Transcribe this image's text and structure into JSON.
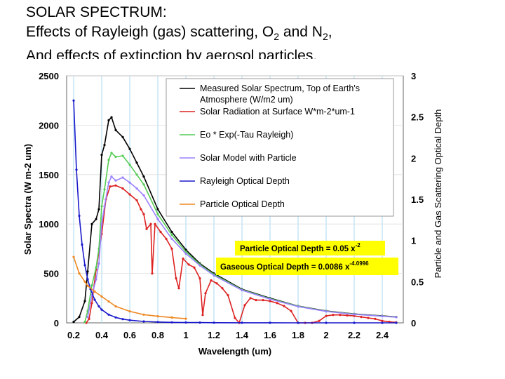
{
  "title": {
    "line1": "SOLAR SPECTRUM:",
    "line2_a": "Effects of Rayleigh (gas) scattering, O",
    "line2_sub1": "2",
    "line2_b": " and N",
    "line2_sub2": "2",
    "line2_c": ",",
    "line3": "And effects of extinction by aerosol particles."
  },
  "chart_data": {
    "type": "line",
    "xlabel": "Wavelength (um)",
    "ylabel_left": "Solar Spectra (W m-2 um)",
    "ylabel_right": "Particle and Gas Scattering Optical Depth",
    "xlim": [
      0.15,
      2.55
    ],
    "ylim_left": [
      0,
      2500
    ],
    "ylim_right": [
      0,
      3
    ],
    "xticks": [
      "0.2",
      "0.4",
      "0.6",
      "0.8",
      "1",
      "1.2",
      "1.4",
      "1.6",
      "1.8",
      "2",
      "2.2",
      "2.4"
    ],
    "xtick_values": [
      0.2,
      0.4,
      0.6,
      0.8,
      1.0,
      1.2,
      1.4,
      1.6,
      1.8,
      2.0,
      2.2,
      2.4
    ],
    "yticks_left": [
      "0",
      "500",
      "1000",
      "1500",
      "2000",
      "2500"
    ],
    "ytick_values_left": [
      0,
      500,
      1000,
      1500,
      2000,
      2500
    ],
    "yticks_right": [
      "0",
      "0.5",
      "1",
      "1.5",
      "2",
      "2.5",
      "3"
    ],
    "ytick_values_right": [
      0,
      0.5,
      1,
      1.5,
      2,
      2.5,
      3
    ],
    "series": [
      {
        "name": "Measured Solar Spectrum, Top of Earth's Atmosphere (W/m2 um)",
        "color": "#000000",
        "axis": "left",
        "x": [
          0.2,
          0.24,
          0.28,
          0.3,
          0.33,
          0.36,
          0.38,
          0.4,
          0.42,
          0.45,
          0.47,
          0.5,
          0.55,
          0.6,
          0.65,
          0.7,
          0.8,
          0.9,
          1.0,
          1.1,
          1.2,
          1.4,
          1.6,
          1.8,
          2.0,
          2.2,
          2.4,
          2.5
        ],
        "y": [
          10,
          60,
          220,
          520,
          1000,
          1050,
          1150,
          1700,
          1800,
          2050,
          2080,
          1950,
          1880,
          1760,
          1620,
          1480,
          1150,
          920,
          740,
          600,
          500,
          340,
          250,
          170,
          120,
          90,
          70,
          60
        ]
      },
      {
        "name": "Solar Radiation at Surface W*m-2*um-1",
        "color": "#dd2222",
        "axis": "left",
        "x": [
          0.29,
          0.31,
          0.33,
          0.36,
          0.4,
          0.43,
          0.46,
          0.5,
          0.55,
          0.6,
          0.65,
          0.68,
          0.7,
          0.72,
          0.75,
          0.76,
          0.78,
          0.82,
          0.86,
          0.9,
          0.93,
          0.95,
          0.98,
          1.02,
          1.06,
          1.1,
          1.12,
          1.14,
          1.18,
          1.22,
          1.26,
          1.3,
          1.35,
          1.38,
          1.42,
          1.46,
          1.5,
          1.55,
          1.6,
          1.65,
          1.7,
          1.75,
          1.8,
          1.85,
          1.9,
          1.95,
          2.0,
          2.05,
          2.1,
          2.15,
          2.2,
          2.25,
          2.3,
          2.35,
          2.4,
          2.45,
          2.5
        ],
        "y": [
          0,
          40,
          200,
          540,
          900,
          1250,
          1380,
          1390,
          1360,
          1300,
          1240,
          1150,
          1100,
          950,
          1000,
          500,
          1000,
          920,
          850,
          750,
          450,
          350,
          650,
          590,
          560,
          450,
          80,
          300,
          430,
          400,
          350,
          280,
          50,
          0,
          180,
          250,
          230,
          230,
          220,
          200,
          170,
          120,
          0,
          0,
          0,
          20,
          70,
          80,
          80,
          75,
          70,
          60,
          50,
          40,
          20,
          10,
          5
        ]
      },
      {
        "name": "Eo * Exp(-Tau Rayleigh)",
        "color": "#55cc55",
        "axis": "left",
        "x": [
          0.28,
          0.3,
          0.33,
          0.36,
          0.38,
          0.4,
          0.42,
          0.45,
          0.47,
          0.5,
          0.55,
          0.6,
          0.65,
          0.7,
          0.8,
          0.9,
          1.0,
          1.1,
          1.2,
          1.4,
          1.6,
          1.8,
          2.0,
          2.2,
          2.4,
          2.5
        ],
        "y": [
          10,
          120,
          380,
          560,
          750,
          1180,
          1350,
          1650,
          1720,
          1680,
          1690,
          1600,
          1500,
          1400,
          1100,
          890,
          720,
          590,
          490,
          335,
          245,
          168,
          118,
          88,
          68,
          58
        ]
      },
      {
        "name": "Solar Model with Particle",
        "color": "#9b80ff",
        "axis": "left",
        "x": [
          0.3,
          0.33,
          0.36,
          0.38,
          0.4,
          0.42,
          0.45,
          0.47,
          0.5,
          0.55,
          0.6,
          0.65,
          0.7,
          0.8,
          0.9,
          1.0,
          1.1,
          1.2,
          1.4,
          1.6,
          1.8,
          2.0,
          2.2,
          2.4,
          2.5
        ],
        "y": [
          60,
          280,
          440,
          600,
          1000,
          1180,
          1420,
          1480,
          1440,
          1470,
          1420,
          1360,
          1290,
          1050,
          850,
          700,
          580,
          480,
          330,
          240,
          165,
          116,
          86,
          67,
          57
        ]
      },
      {
        "name": "Rayleigh Optical Depth",
        "color": "#1a1acc",
        "axis": "right",
        "x": [
          0.2,
          0.22,
          0.24,
          0.26,
          0.28,
          0.3,
          0.32,
          0.35,
          0.38,
          0.4,
          0.45,
          0.5,
          0.55,
          0.6,
          0.7,
          0.8,
          0.9,
          1.0,
          1.1,
          1.2,
          1.4,
          1.6,
          1.8,
          2.0,
          2.2,
          2.4,
          2.5
        ],
        "y": [
          2.7,
          1.86,
          1.3,
          0.95,
          0.7,
          0.53,
          0.41,
          0.28,
          0.2,
          0.16,
          0.1,
          0.066,
          0.045,
          0.032,
          0.017,
          0.01,
          0.006,
          0.004,
          0.003,
          0.002,
          0.001,
          0.0005,
          0.0003,
          0.0002,
          0.0001,
          0.0001,
          0.0001
        ]
      },
      {
        "name": "Particle Optical Depth",
        "color": "#ee8822",
        "axis": "right",
        "x": [
          0.2,
          0.24,
          0.28,
          0.3,
          0.35,
          0.4,
          0.45,
          0.5,
          0.6,
          0.7,
          0.8,
          0.9,
          1.0
        ],
        "y": [
          0.8,
          0.6,
          0.5,
          0.45,
          0.38,
          0.32,
          0.26,
          0.2,
          0.14,
          0.1,
          0.08,
          0.065,
          0.05
        ]
      }
    ],
    "legend": {
      "placement": "top-right",
      "entries": [
        "Measured Solar Spectrum, Top of Earth's",
        "Atmosphere (W/m2 um)",
        "Solar Radiation at Surface W*m-2*um-1",
        "Eo * Exp(-Tau Rayleigh)",
        "Solar Model with Particle",
        "Rayleigh Optical Depth",
        "Particle Optical Depth"
      ]
    },
    "annotations": {
      "particle_text": "Particle Optical Depth = 0.05 x",
      "particle_exp": "-2",
      "gas_text": "Gaseous Optical Depth = 0.0086 x",
      "gas_exp": "-4.0996",
      "box_color": "#ffff00"
    },
    "grid": true
  }
}
